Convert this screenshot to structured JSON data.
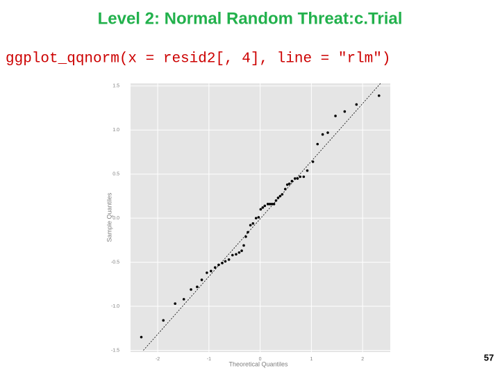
{
  "chart_data": {
    "type": "scatter",
    "title": "Level 2: Normal Random Threat:c.Trial",
    "subtitle": "ggplot_qqnorm(x = resid2[, 4], line = \"rlm\")",
    "xlabel": "Theoretical Quantiles",
    "ylabel": "Sample Quantiles",
    "slide_number": "57",
    "color": "#000000",
    "grid": true,
    "xlim": [
      -2.53,
      2.54
    ],
    "ylim": [
      -1.52,
      1.53
    ],
    "xticks": [
      -2,
      -1,
      0,
      1,
      2
    ],
    "yticks": [
      {
        "value": -1.5,
        "label": "-1.5"
      },
      {
        "value": -1.0,
        "label": "-1.0"
      },
      {
        "value": -0.5,
        "label": "-0.5"
      },
      {
        "value": 0.0,
        "label": "0.0"
      },
      {
        "value": 0.5,
        "label": "0.5"
      },
      {
        "value": 1.0,
        "label": "1.0"
      },
      {
        "value": 1.5,
        "label": "1.5"
      }
    ],
    "x": [
      -2.32,
      -1.89,
      -1.66,
      -1.49,
      -1.35,
      -1.23,
      -1.14,
      -1.04,
      -0.96,
      -0.88,
      -0.81,
      -0.74,
      -0.68,
      -0.61,
      -0.54,
      -0.47,
      -0.41,
      -0.36,
      -0.32,
      -0.28,
      -0.24,
      -0.19,
      -0.14,
      -0.08,
      -0.03,
      0.01,
      0.05,
      0.09,
      0.15,
      0.19,
      0.23,
      0.27,
      0.31,
      0.35,
      0.39,
      0.43,
      0.49,
      0.53,
      0.57,
      0.62,
      0.68,
      0.73,
      0.78,
      0.85,
      0.92,
      1.03,
      1.12,
      1.22,
      1.32,
      1.47,
      1.65,
      1.88,
      2.32
    ],
    "values": [
      -1.35,
      -1.16,
      -0.97,
      -0.92,
      -0.81,
      -0.78,
      -0.7,
      -0.62,
      -0.6,
      -0.56,
      -0.53,
      -0.51,
      -0.49,
      -0.47,
      -0.42,
      -0.41,
      -0.39,
      -0.37,
      -0.31,
      -0.21,
      -0.16,
      -0.08,
      -0.06,
      0.0,
      0.01,
      0.1,
      0.12,
      0.14,
      0.16,
      0.16,
      0.16,
      0.16,
      0.2,
      0.23,
      0.25,
      0.27,
      0.33,
      0.38,
      0.39,
      0.42,
      0.45,
      0.45,
      0.47,
      0.47,
      0.54,
      0.64,
      0.84,
      0.95,
      0.97,
      1.16,
      1.21,
      1.29,
      1.39
    ],
    "reference_line": {
      "x": [
        -2.28,
        2.35
      ],
      "y": [
        -1.5,
        1.53
      ]
    }
  }
}
